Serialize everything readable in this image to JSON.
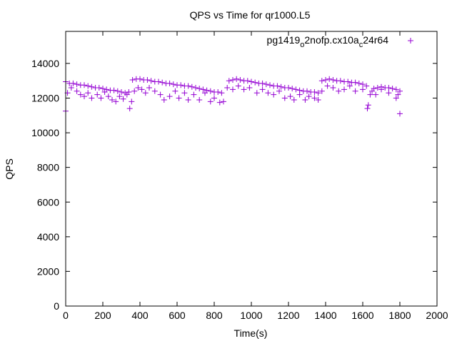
{
  "chart_data": {
    "type": "scatter",
    "title": "QPS vs Time for qr1000.L5",
    "xlabel": "Time(s)",
    "ylabel": "QPS",
    "xlim": [
      0,
      2000
    ],
    "ylim": [
      0,
      15850
    ],
    "xticks": [
      0,
      200,
      400,
      600,
      800,
      1000,
      1200,
      1400,
      1600,
      1800,
      2000
    ],
    "yticks": [
      0,
      2000,
      4000,
      6000,
      8000,
      10000,
      12000,
      14000
    ],
    "grid": false,
    "legend": {
      "position": "top-right",
      "label_main": "pg1419",
      "sub1": "o",
      "mid": "2nofp.cx10a",
      "sub2": "c",
      "tail": "24r64"
    },
    "series_color": "#9400d3",
    "marker": "plus",
    "points": [
      [
        0,
        12950
      ],
      [
        20,
        12850
      ],
      [
        40,
        12850
      ],
      [
        60,
        12800
      ],
      [
        80,
        12750
      ],
      [
        100,
        12750
      ],
      [
        120,
        12700
      ],
      [
        140,
        12650
      ],
      [
        160,
        12600
      ],
      [
        180,
        12600
      ],
      [
        200,
        12550
      ],
      [
        220,
        12500
      ],
      [
        240,
        12450
      ],
      [
        260,
        12450
      ],
      [
        280,
        12400
      ],
      [
        300,
        12350
      ],
      [
        320,
        12300
      ],
      [
        340,
        12350
      ],
      [
        360,
        13050
      ],
      [
        380,
        13100
      ],
      [
        400,
        13100
      ],
      [
        420,
        13050
      ],
      [
        440,
        13050
      ],
      [
        460,
        13000
      ],
      [
        480,
        12950
      ],
      [
        500,
        12950
      ],
      [
        520,
        12900
      ],
      [
        540,
        12850
      ],
      [
        560,
        12850
      ],
      [
        580,
        12800
      ],
      [
        600,
        12750
      ],
      [
        620,
        12750
      ],
      [
        640,
        12700
      ],
      [
        660,
        12700
      ],
      [
        680,
        12650
      ],
      [
        700,
        12600
      ],
      [
        720,
        12550
      ],
      [
        740,
        12500
      ],
      [
        760,
        12450
      ],
      [
        780,
        12400
      ],
      [
        800,
        12350
      ],
      [
        820,
        12350
      ],
      [
        840,
        12300
      ],
      [
        880,
        13000
      ],
      [
        900,
        13050
      ],
      [
        920,
        13100
      ],
      [
        940,
        13050
      ],
      [
        960,
        13000
      ],
      [
        980,
        13000
      ],
      [
        1000,
        12950
      ],
      [
        1020,
        12900
      ],
      [
        1040,
        12850
      ],
      [
        1060,
        12850
      ],
      [
        1080,
        12800
      ],
      [
        1100,
        12750
      ],
      [
        1120,
        12700
      ],
      [
        1140,
        12700
      ],
      [
        1160,
        12650
      ],
      [
        1180,
        12600
      ],
      [
        1200,
        12600
      ],
      [
        1220,
        12550
      ],
      [
        1240,
        12500
      ],
      [
        1260,
        12450
      ],
      [
        1280,
        12400
      ],
      [
        1300,
        12400
      ],
      [
        1320,
        12350
      ],
      [
        1340,
        12350
      ],
      [
        1360,
        12300
      ],
      [
        1380,
        13000
      ],
      [
        1400,
        13050
      ],
      [
        1420,
        13100
      ],
      [
        1440,
        13050
      ],
      [
        1460,
        13000
      ],
      [
        1480,
        13000
      ],
      [
        1500,
        12950
      ],
      [
        1520,
        12950
      ],
      [
        1540,
        12900
      ],
      [
        1560,
        12900
      ],
      [
        1580,
        12850
      ],
      [
        1600,
        12800
      ],
      [
        1620,
        12700
      ],
      [
        1630,
        11600
      ],
      [
        1640,
        12200
      ],
      [
        1660,
        12550
      ],
      [
        1680,
        12600
      ],
      [
        1700,
        12650
      ],
      [
        1720,
        12600
      ],
      [
        1740,
        12600
      ],
      [
        1760,
        12550
      ],
      [
        1780,
        12500
      ],
      [
        1800,
        12400
      ],
      [
        0,
        11250
      ],
      [
        10,
        12300
      ],
      [
        30,
        12600
      ],
      [
        60,
        12400
      ],
      [
        80,
        12200
      ],
      [
        100,
        12100
      ],
      [
        120,
        12300
      ],
      [
        140,
        12000
      ],
      [
        170,
        12200
      ],
      [
        190,
        12000
      ],
      [
        210,
        12350
      ],
      [
        230,
        12100
      ],
      [
        250,
        11900
      ],
      [
        270,
        11800
      ],
      [
        290,
        12100
      ],
      [
        310,
        11950
      ],
      [
        330,
        12200
      ],
      [
        345,
        11400
      ],
      [
        355,
        11800
      ],
      [
        370,
        12400
      ],
      [
        390,
        12600
      ],
      [
        410,
        12500
      ],
      [
        430,
        12300
      ],
      [
        450,
        12600
      ],
      [
        480,
        12400
      ],
      [
        510,
        12200
      ],
      [
        530,
        11900
      ],
      [
        560,
        12100
      ],
      [
        590,
        12400
      ],
      [
        610,
        12000
      ],
      [
        640,
        12300
      ],
      [
        660,
        11900
      ],
      [
        690,
        12200
      ],
      [
        720,
        11900
      ],
      [
        750,
        12300
      ],
      [
        780,
        11800
      ],
      [
        800,
        12000
      ],
      [
        830,
        11750
      ],
      [
        850,
        11800
      ],
      [
        870,
        12600
      ],
      [
        900,
        12500
      ],
      [
        930,
        12700
      ],
      [
        960,
        12500
      ],
      [
        990,
        12600
      ],
      [
        1030,
        12300
      ],
      [
        1060,
        12500
      ],
      [
        1090,
        12300
      ],
      [
        1120,
        12200
      ],
      [
        1150,
        12400
      ],
      [
        1180,
        12000
      ],
      [
        1210,
        12100
      ],
      [
        1230,
        11900
      ],
      [
        1260,
        12200
      ],
      [
        1290,
        11900
      ],
      [
        1310,
        12100
      ],
      [
        1340,
        12000
      ],
      [
        1360,
        11900
      ],
      [
        1380,
        12400
      ],
      [
        1410,
        12700
      ],
      [
        1440,
        12600
      ],
      [
        1470,
        12400
      ],
      [
        1500,
        12500
      ],
      [
        1530,
        12700
      ],
      [
        1560,
        12400
      ],
      [
        1600,
        12500
      ],
      [
        1625,
        11400
      ],
      [
        1650,
        12400
      ],
      [
        1670,
        12200
      ],
      [
        1700,
        12500
      ],
      [
        1740,
        12300
      ],
      [
        1780,
        12000
      ],
      [
        1790,
        12200
      ],
      [
        1800,
        11100
      ]
    ]
  }
}
